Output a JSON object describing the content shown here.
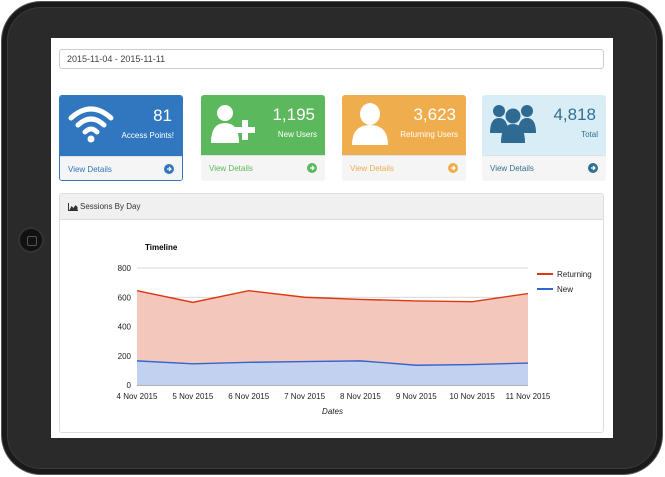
{
  "date_range": "2015-11-04 - 2015-11-11",
  "cards": [
    {
      "value": "81",
      "label": "Access Points!",
      "link": "View Details",
      "icon": "wifi-icon",
      "color": "#3177bf",
      "link_color": "#3177bf"
    },
    {
      "value": "1,195",
      "label": "New Users",
      "link": "View Details",
      "icon": "add-user-icon",
      "color": "#5cb85c",
      "link_color": "#5cb85c"
    },
    {
      "value": "3,623",
      "label": "Returning Users",
      "link": "View Details",
      "icon": "user-icon",
      "color": "#f0ad4e",
      "link_color": "#f0ad4e"
    },
    {
      "value": "4,818",
      "label": "Total",
      "link": "View Details",
      "icon": "users-group-icon",
      "color": "#d9edf7",
      "link_color": "#31708f"
    }
  ],
  "panel": {
    "title": "Sessions By Day",
    "icon": "area-chart-icon"
  },
  "chart_data": {
    "type": "area",
    "title": "Timeline",
    "xlabel": "Dates",
    "ylabel": "",
    "categories": [
      "4 Nov 2015",
      "5 Nov 2015",
      "6 Nov 2015",
      "7 Nov 2015",
      "8 Nov 2015",
      "9 Nov 2015",
      "10 Nov 2015",
      "11 Nov 2015"
    ],
    "ylim": [
      0,
      800
    ],
    "yticks": [
      0,
      200,
      400,
      600,
      800
    ],
    "stacked": false,
    "series": [
      {
        "name": "Returning",
        "values": [
          645,
          565,
          645,
          600,
          585,
          575,
          570,
          625
        ],
        "color": "#dc3912",
        "fill": "#f4c7bc"
      },
      {
        "name": "New",
        "values": [
          165,
          145,
          155,
          160,
          165,
          135,
          140,
          150
        ],
        "color": "#3366cc",
        "fill": "#c2d1f0"
      }
    ],
    "legend": "right",
    "grid": true
  }
}
